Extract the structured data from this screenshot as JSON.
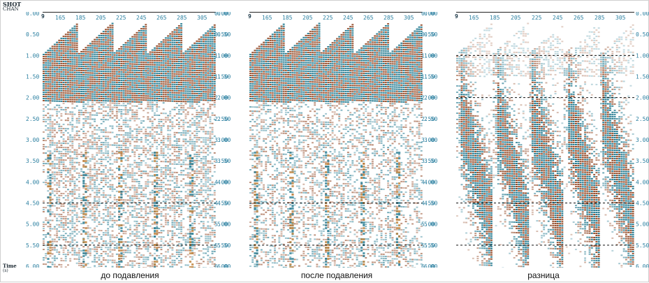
{
  "header": {
    "shot_label": "SHOT",
    "chan_label": "CHAN",
    "time_label": "Time",
    "time_units": "(s)",
    "shot_number": "9"
  },
  "trace_labels": [
    "165",
    "185",
    "205",
    "225",
    "245",
    "265",
    "285",
    "305"
  ],
  "time_ticks": [
    "0.00",
    "0.50",
    "1.00",
    "1.50",
    "2.00",
    "2.50",
    "3.00",
    "3.50",
    "4.00",
    "4.50",
    "5.00",
    "5.50",
    "6.00"
  ],
  "panels": [
    {
      "caption": "до подавления",
      "type": "before"
    },
    {
      "caption": "после подавления",
      "type": "after"
    },
    {
      "caption": "разница",
      "type": "diff"
    }
  ],
  "colors": {
    "positive": "#8a3a14",
    "negative": "#0f6e86",
    "tick": "#2a7fa0",
    "dashed_line": "#111111"
  }
}
